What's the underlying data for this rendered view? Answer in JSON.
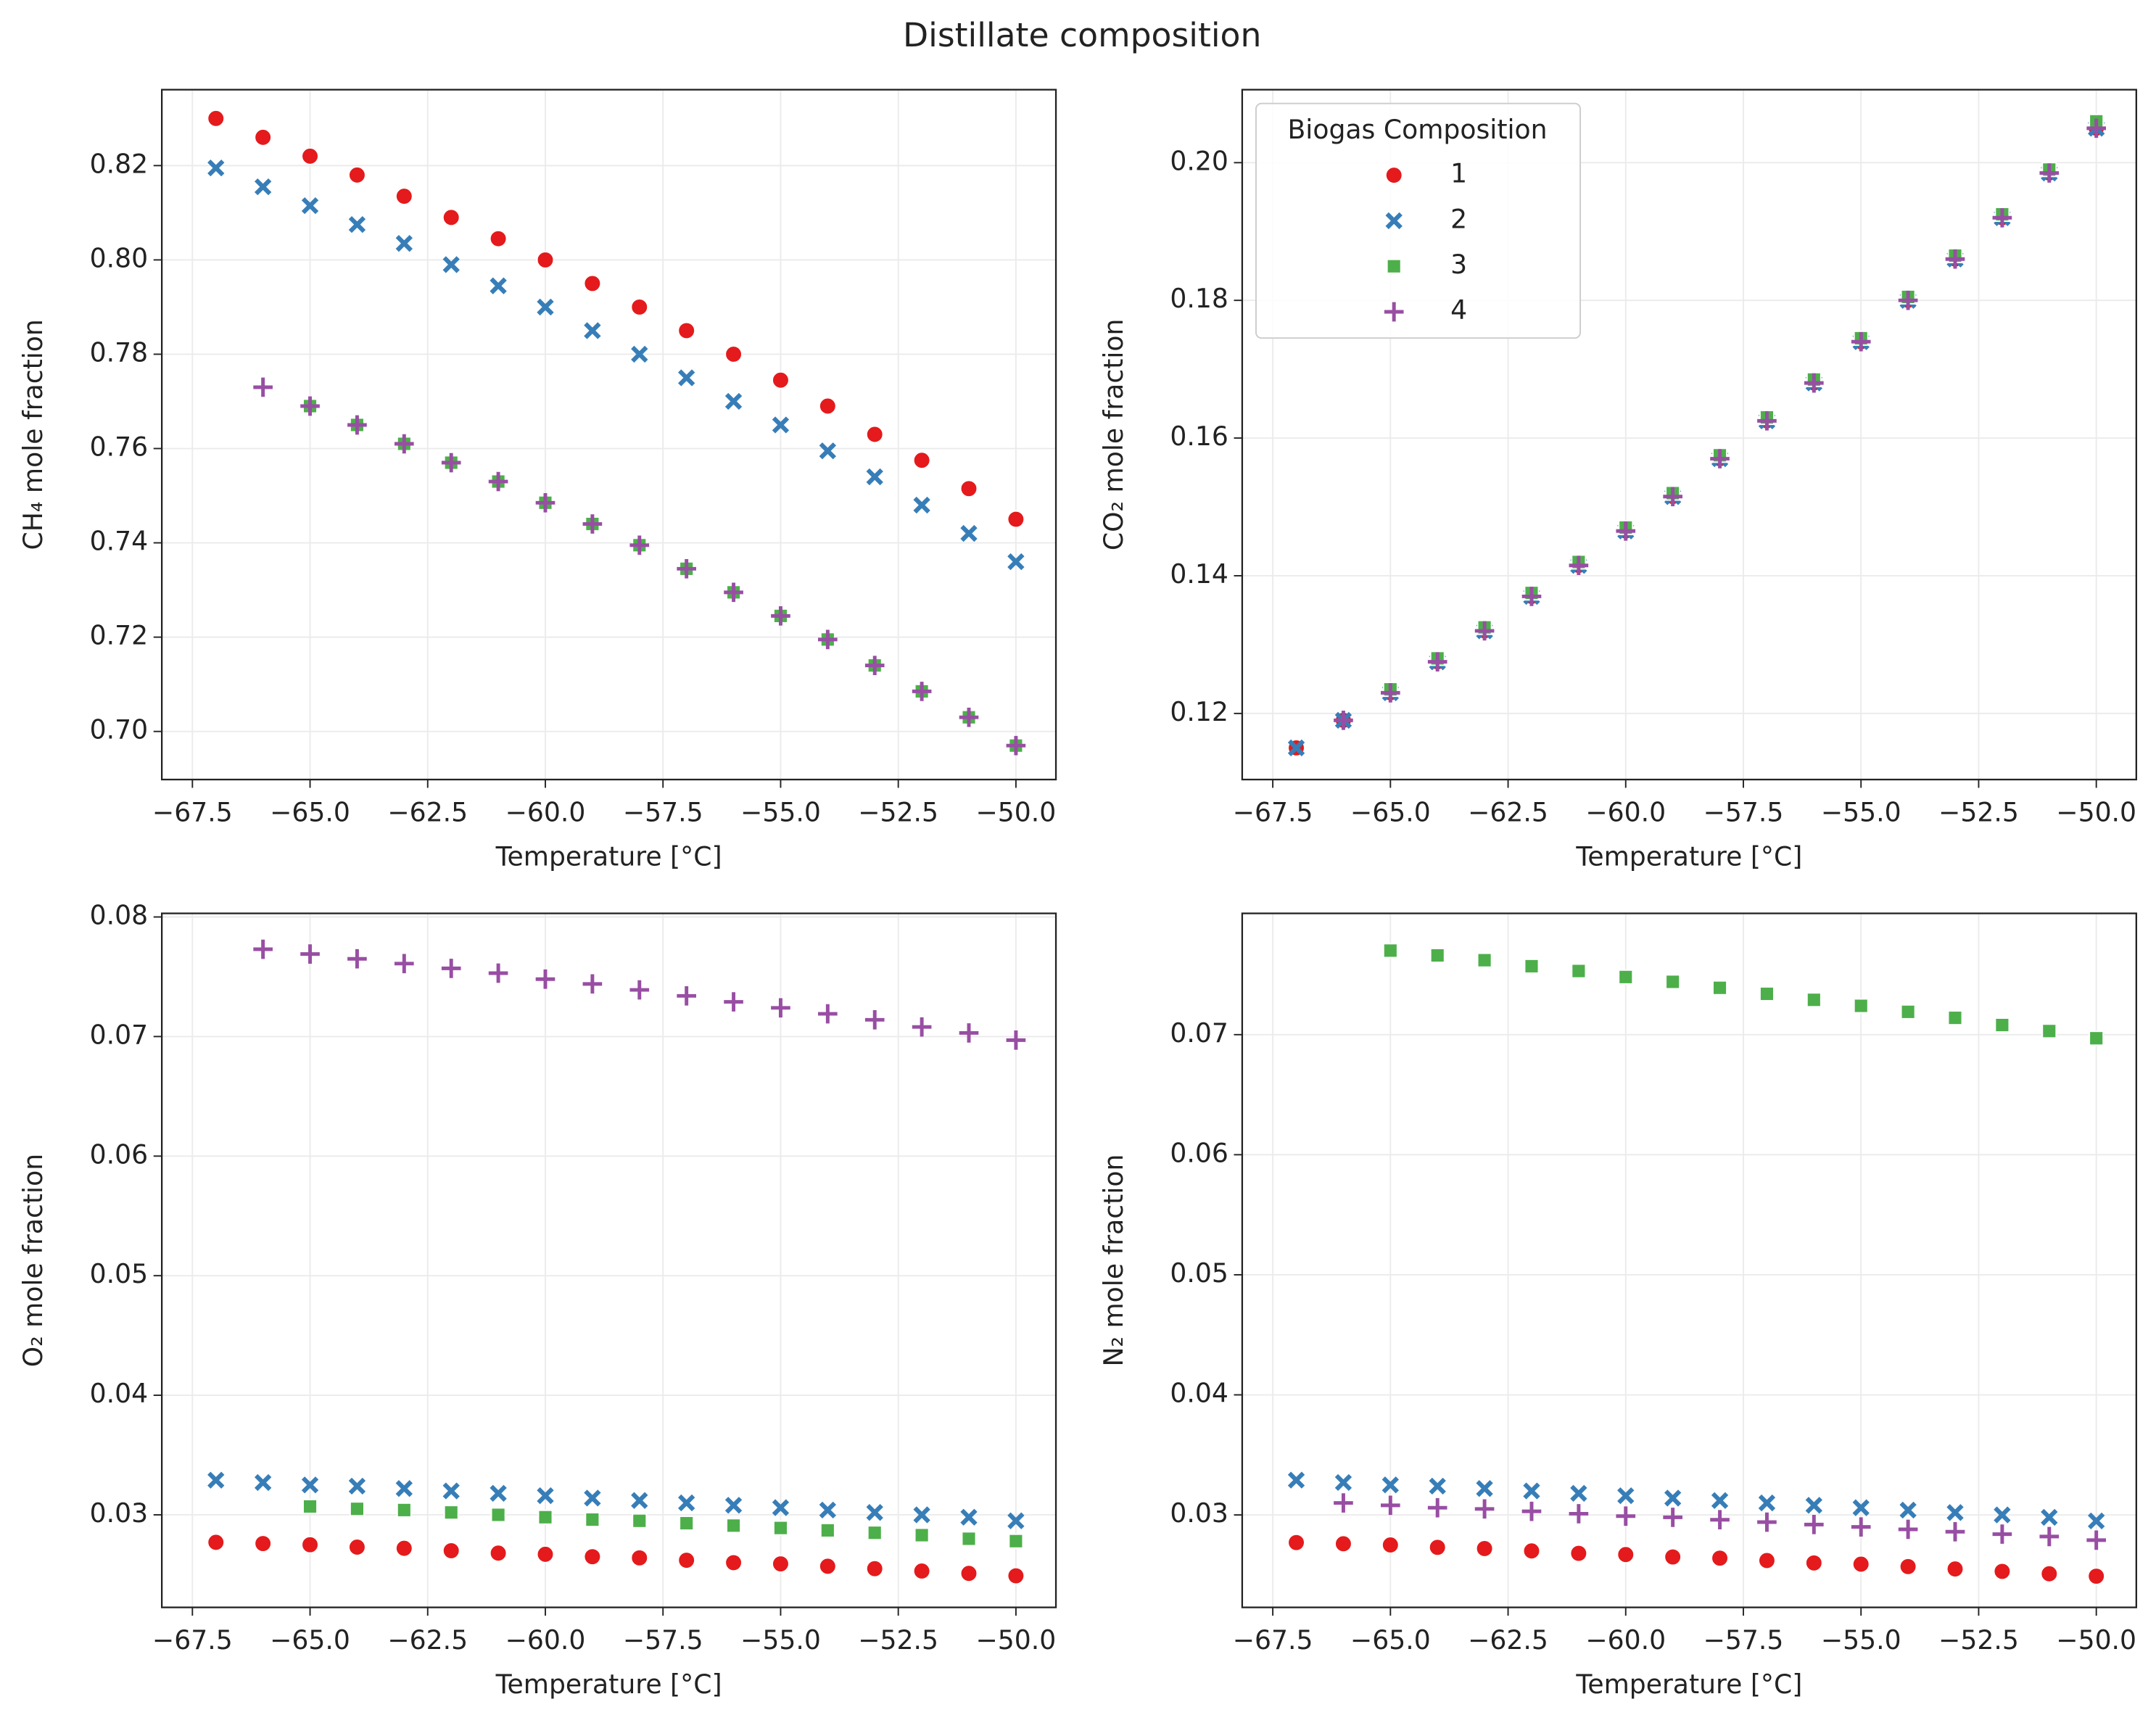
{
  "title": "Distillate composition",
  "chart_data": [
    {
      "type": "scatter",
      "ylabel": "CH₄ mole fraction",
      "xlabel": "Temperature [°C]",
      "x": [
        -67,
        -66,
        -65,
        -64,
        -63,
        -62,
        -61,
        -60,
        -59,
        -58,
        -57,
        -56,
        -55,
        -54,
        -53,
        -52,
        -51,
        -50
      ],
      "xlim": [
        -68.15,
        -49.15
      ],
      "xticks": [
        {
          "value": -67.5,
          "label": "−67.5"
        },
        {
          "value": -65,
          "label": "−65.0"
        },
        {
          "value": -62.5,
          "label": "−62.5"
        },
        {
          "value": -60,
          "label": "−60.0"
        },
        {
          "value": -57.5,
          "label": "−57.5"
        },
        {
          "value": -55,
          "label": "−55.0"
        },
        {
          "value": -52.5,
          "label": "−52.5"
        },
        {
          "value": -50,
          "label": "−50.0"
        }
      ],
      "ylim": [
        0.6898,
        0.8361
      ],
      "yticks": [
        {
          "value": 0.7,
          "label": "0.70"
        },
        0.72,
        0.74,
        0.76,
        0.78,
        {
          "value": 0.8,
          "label": "0.80"
        },
        0.82
      ],
      "grid": true,
      "series": [
        {
          "name": "1",
          "color": "#e41a1c",
          "marker": "o",
          "values": [
            0.83,
            0.826,
            0.822,
            0.818,
            0.8135,
            0.809,
            0.8045,
            0.8,
            0.795,
            0.79,
            0.785,
            0.78,
            0.7745,
            0.769,
            0.763,
            0.7575,
            0.7515,
            0.745
          ]
        },
        {
          "name": "2",
          "color": "#377eb8",
          "marker": "x",
          "values": [
            0.8195,
            0.8155,
            0.8115,
            0.8075,
            0.8035,
            0.799,
            0.7945,
            0.79,
            0.785,
            0.78,
            0.775,
            0.77,
            0.765,
            0.7595,
            0.754,
            0.748,
            0.742,
            0.736
          ]
        },
        {
          "name": "3",
          "color": "#4daf4a",
          "marker": "s",
          "values": [
            null,
            null,
            0.769,
            0.765,
            0.761,
            0.757,
            0.753,
            0.7485,
            0.744,
            0.7395,
            0.7345,
            0.7295,
            0.7245,
            0.7195,
            0.714,
            0.7085,
            0.703,
            0.697
          ]
        },
        {
          "name": "4",
          "color": "#984ea3",
          "marker": "+",
          "values": [
            null,
            0.773,
            0.769,
            0.765,
            0.761,
            0.757,
            0.753,
            0.7485,
            0.744,
            0.7395,
            0.7345,
            0.7295,
            0.7245,
            0.7195,
            0.714,
            0.7085,
            0.703,
            0.697
          ]
        }
      ]
    },
    {
      "type": "scatter",
      "ylabel": "CO₂ mole fraction",
      "xlabel": "Temperature [°C]",
      "legend_title": "Biogas Composition",
      "legend": "upper left",
      "x": [
        -67,
        -66,
        -65,
        -64,
        -63,
        -62,
        -61,
        -60,
        -59,
        -58,
        -57,
        -56,
        -55,
        -54,
        -53,
        -52,
        -51,
        -50
      ],
      "xlim": [
        -68.15,
        -49.15
      ],
      "xticks": [
        {
          "value": -67.5,
          "label": "−67.5"
        },
        {
          "value": -65,
          "label": "−65.0"
        },
        {
          "value": -62.5,
          "label": "−62.5"
        },
        {
          "value": -60,
          "label": "−60.0"
        },
        {
          "value": -57.5,
          "label": "−57.5"
        },
        {
          "value": -55,
          "label": "−55.0"
        },
        {
          "value": -52.5,
          "label": "−52.5"
        },
        {
          "value": -50,
          "label": "−50.0"
        }
      ],
      "ylim": [
        0.1104,
        0.2106
      ],
      "yticks": [
        0.12,
        0.14,
        0.16,
        0.18,
        {
          "value": 0.2,
          "label": "0.20"
        }
      ],
      "grid": true,
      "series": [
        {
          "name": "1",
          "color": "#e41a1c",
          "marker": "o",
          "values": [
            0.115,
            0.119,
            0.123,
            0.1275,
            0.132,
            0.137,
            0.1415,
            0.1465,
            0.1515,
            0.157,
            0.1625,
            0.168,
            0.174,
            0.18,
            0.186,
            0.192,
            0.1985,
            0.205
          ]
        },
        {
          "name": "2",
          "color": "#377eb8",
          "marker": "x",
          "values": [
            0.115,
            0.119,
            0.123,
            0.1275,
            0.132,
            0.137,
            0.1415,
            0.1465,
            0.1515,
            0.157,
            0.1625,
            0.168,
            0.174,
            0.18,
            0.186,
            0.192,
            0.1985,
            0.205
          ]
        },
        {
          "name": "3",
          "color": "#4daf4a",
          "marker": "s",
          "values": [
            null,
            null,
            0.1235,
            0.128,
            0.1325,
            0.1375,
            0.142,
            0.147,
            0.152,
            0.1575,
            0.163,
            0.1685,
            0.1745,
            0.1805,
            0.1865,
            0.1925,
            0.199,
            0.206
          ]
        },
        {
          "name": "4",
          "color": "#984ea3",
          "marker": "+",
          "values": [
            null,
            0.119,
            0.123,
            0.1275,
            0.132,
            0.137,
            0.1415,
            0.1465,
            0.1515,
            0.157,
            0.1625,
            0.168,
            0.174,
            0.18,
            0.186,
            0.192,
            0.1985,
            0.205
          ]
        }
      ]
    },
    {
      "type": "scatter",
      "ylabel": "O₂ mole fraction",
      "xlabel": "Temperature [°C]",
      "x": [
        -67,
        -66,
        -65,
        -64,
        -63,
        -62,
        -61,
        -60,
        -59,
        -58,
        -57,
        -56,
        -55,
        -54,
        -53,
        -52,
        -51,
        -50
      ],
      "xlim": [
        -68.15,
        -49.15
      ],
      "xticks": [
        {
          "value": -67.5,
          "label": "−67.5"
        },
        {
          "value": -65,
          "label": "−65.0"
        },
        {
          "value": -62.5,
          "label": "−62.5"
        },
        {
          "value": -60,
          "label": "−60.0"
        },
        {
          "value": -57.5,
          "label": "−57.5"
        },
        {
          "value": -55,
          "label": "−55.0"
        },
        {
          "value": -52.5,
          "label": "−52.5"
        },
        {
          "value": -50,
          "label": "−50.0"
        }
      ],
      "ylim": [
        0.02226,
        0.0803
      ],
      "yticks": [
        0.03,
        0.04,
        0.05,
        0.06,
        0.07,
        0.08
      ],
      "grid": true,
      "series": [
        {
          "name": "1",
          "color": "#e41a1c",
          "marker": "o",
          "values": [
            0.0277,
            0.0276,
            0.0275,
            0.0273,
            0.0272,
            0.027,
            0.0268,
            0.0267,
            0.0265,
            0.0264,
            0.0262,
            0.026,
            0.0259,
            0.0257,
            0.0255,
            0.0253,
            0.0251,
            0.0249
          ]
        },
        {
          "name": "2",
          "color": "#377eb8",
          "marker": "x",
          "values": [
            0.0329,
            0.0327,
            0.0325,
            0.0324,
            0.0322,
            0.032,
            0.0318,
            0.0316,
            0.0314,
            0.0312,
            0.031,
            0.0308,
            0.0306,
            0.0304,
            0.0302,
            0.03,
            0.0298,
            0.0295
          ]
        },
        {
          "name": "3",
          "color": "#4daf4a",
          "marker": "s",
          "values": [
            null,
            null,
            0.0307,
            0.0305,
            0.0304,
            0.0302,
            0.03,
            0.0298,
            0.0296,
            0.0295,
            0.0293,
            0.0291,
            0.0289,
            0.0287,
            0.0285,
            0.0283,
            0.028,
            0.0278
          ]
        },
        {
          "name": "4",
          "color": "#984ea3",
          "marker": "+",
          "values": [
            null,
            0.0773,
            0.0769,
            0.0765,
            0.0761,
            0.0757,
            0.0753,
            0.0748,
            0.0744,
            0.0739,
            0.0734,
            0.0729,
            0.0724,
            0.0719,
            0.0714,
            0.0708,
            0.0703,
            0.0697
          ]
        }
      ]
    },
    {
      "type": "scatter",
      "ylabel": "N₂ mole fraction",
      "xlabel": "Temperature [°C]",
      "x": [
        -67,
        -66,
        -65,
        -64,
        -63,
        -62,
        -61,
        -60,
        -59,
        -58,
        -57,
        -56,
        -55,
        -54,
        -53,
        -52,
        -51,
        -50
      ],
      "xlim": [
        -68.15,
        -49.15
      ],
      "xticks": [
        {
          "value": -67.5,
          "label": "−67.5"
        },
        {
          "value": -65,
          "label": "−65.0"
        },
        {
          "value": -62.5,
          "label": "−62.5"
        },
        {
          "value": -60,
          "label": "−60.0"
        },
        {
          "value": -57.5,
          "label": "−57.5"
        },
        {
          "value": -55,
          "label": "−55.0"
        },
        {
          "value": -52.5,
          "label": "−52.5"
        },
        {
          "value": -50,
          "label": "−50.0"
        }
      ],
      "ylim": [
        0.0223,
        0.0801
      ],
      "yticks": [
        0.03,
        0.04,
        0.05,
        0.06,
        0.07
      ],
      "grid": true,
      "series": [
        {
          "name": "1",
          "color": "#e41a1c",
          "marker": "o",
          "values": [
            0.0277,
            0.0276,
            0.0275,
            0.0273,
            0.0272,
            0.027,
            0.0268,
            0.0267,
            0.0265,
            0.0264,
            0.0262,
            0.026,
            0.0259,
            0.0257,
            0.0255,
            0.0253,
            0.0251,
            0.0249
          ]
        },
        {
          "name": "2",
          "color": "#377eb8",
          "marker": "x",
          "values": [
            0.0329,
            0.0327,
            0.0325,
            0.0324,
            0.0322,
            0.032,
            0.0318,
            0.0316,
            0.0314,
            0.0312,
            0.031,
            0.0308,
            0.0306,
            0.0304,
            0.0302,
            0.03,
            0.0298,
            0.0295
          ]
        },
        {
          "name": "3",
          "color": "#4daf4a",
          "marker": "s",
          "values": [
            null,
            null,
            0.077,
            0.0766,
            0.0762,
            0.0757,
            0.0753,
            0.0748,
            0.0744,
            0.0739,
            0.0734,
            0.0729,
            0.0724,
            0.0719,
            0.0714,
            0.0708,
            0.0703,
            0.0697
          ]
        },
        {
          "name": "4",
          "color": "#984ea3",
          "marker": "+",
          "values": [
            null,
            0.031,
            0.0308,
            0.0306,
            0.0305,
            0.0303,
            0.0301,
            0.0299,
            0.0298,
            0.0296,
            0.0294,
            0.0292,
            0.029,
            0.0288,
            0.0286,
            0.0284,
            0.0282,
            0.0279
          ]
        }
      ]
    }
  ]
}
